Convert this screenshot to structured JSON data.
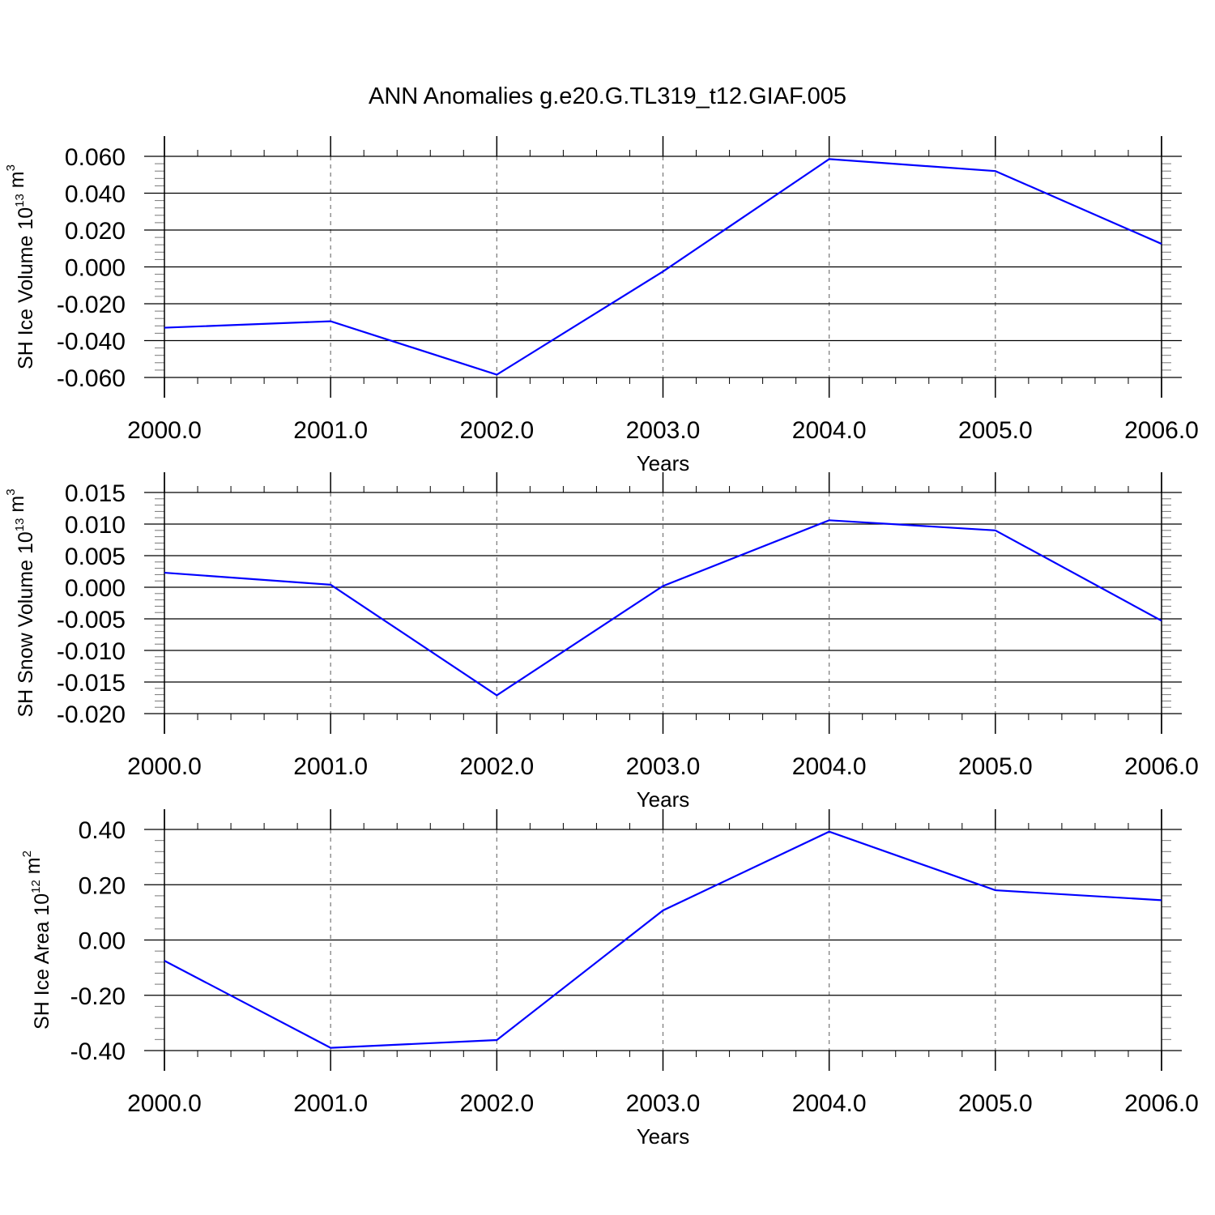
{
  "title": "ANN Anomalies g.e20.G.TL319_t12.GIAF.005",
  "colors": {
    "line": "#0000ff",
    "axis": "#000000",
    "grid": "#777777"
  },
  "chart_data": [
    {
      "type": "line",
      "ylabel": "SH Ice Volume",
      "ylabel_unit_base": "10",
      "ylabel_unit_exp": "13",
      "ylabel_unit_sym": "m",
      "ylabel_unit_sym_exp": "3",
      "xlabel": "Years",
      "xlim": [
        2000,
        2006
      ],
      "ylim": [
        -0.06,
        0.06
      ],
      "x_ticks": [
        "2000.0",
        "2001.0",
        "2002.0",
        "2003.0",
        "2004.0",
        "2005.0",
        "2006.0"
      ],
      "y_ticks": [
        {
          "value": 0.06,
          "label": "0.060"
        },
        {
          "value": 0.04,
          "label": "0.040"
        },
        {
          "value": 0.02,
          "label": "0.020"
        },
        {
          "value": 0.0,
          "label": "0.000"
        },
        {
          "value": -0.02,
          "label": "-0.020"
        },
        {
          "value": -0.04,
          "label": "-0.040"
        },
        {
          "value": -0.06,
          "label": "-0.060"
        }
      ],
      "grid": "vertical dashed at years",
      "series": [
        {
          "x": [
            2000,
            2001,
            2002,
            2003,
            2004,
            2005,
            2006
          ],
          "y": [
            -0.033,
            -0.0295,
            -0.0585,
            -0.0025,
            0.0585,
            0.052,
            0.0125
          ]
        }
      ]
    },
    {
      "type": "line",
      "ylabel": "SH Snow Volume",
      "ylabel_unit_base": "10",
      "ylabel_unit_exp": "13",
      "ylabel_unit_sym": "m",
      "ylabel_unit_sym_exp": "3",
      "xlabel": "Years",
      "xlim": [
        2000,
        2006
      ],
      "ylim": [
        -0.02,
        0.015
      ],
      "x_ticks": [
        "2000.0",
        "2001.0",
        "2002.0",
        "2003.0",
        "2004.0",
        "2005.0",
        "2006.0"
      ],
      "y_ticks": [
        {
          "value": 0.015,
          "label": "0.015"
        },
        {
          "value": 0.01,
          "label": "0.010"
        },
        {
          "value": 0.005,
          "label": "0.005"
        },
        {
          "value": 0.0,
          "label": "0.000"
        },
        {
          "value": -0.005,
          "label": "-0.005"
        },
        {
          "value": -0.01,
          "label": "-0.010"
        },
        {
          "value": -0.015,
          "label": "-0.015"
        },
        {
          "value": -0.02,
          "label": "-0.020"
        }
      ],
      "grid": "vertical dashed at years",
      "series": [
        {
          "x": [
            2000,
            2001,
            2002,
            2003,
            2004,
            2005,
            2006
          ],
          "y": [
            0.0023,
            0.0004,
            -0.0171,
            0.0002,
            0.0106,
            0.009,
            -0.0053
          ]
        }
      ]
    },
    {
      "type": "line",
      "ylabel": "SH Ice Area",
      "ylabel_unit_base": "10",
      "ylabel_unit_exp": "12",
      "ylabel_unit_sym": "m",
      "ylabel_unit_sym_exp": "2",
      "xlabel": "Years",
      "xlim": [
        2000,
        2006
      ],
      "ylim": [
        -0.4,
        0.4
      ],
      "x_ticks": [
        "2000.0",
        "2001.0",
        "2002.0",
        "2003.0",
        "2004.0",
        "2005.0",
        "2006.0"
      ],
      "y_ticks": [
        {
          "value": 0.4,
          "label": "0.40"
        },
        {
          "value": 0.2,
          "label": "0.20"
        },
        {
          "value": 0.0,
          "label": "0.00"
        },
        {
          "value": -0.2,
          "label": "-0.20"
        },
        {
          "value": -0.4,
          "label": "-0.40"
        }
      ],
      "grid": "vertical dashed at years",
      "series": [
        {
          "x": [
            2000,
            2001,
            2002,
            2003,
            2004,
            2005,
            2006
          ],
          "y": [
            -0.075,
            -0.39,
            -0.362,
            0.107,
            0.392,
            0.18,
            0.144
          ]
        }
      ]
    }
  ]
}
